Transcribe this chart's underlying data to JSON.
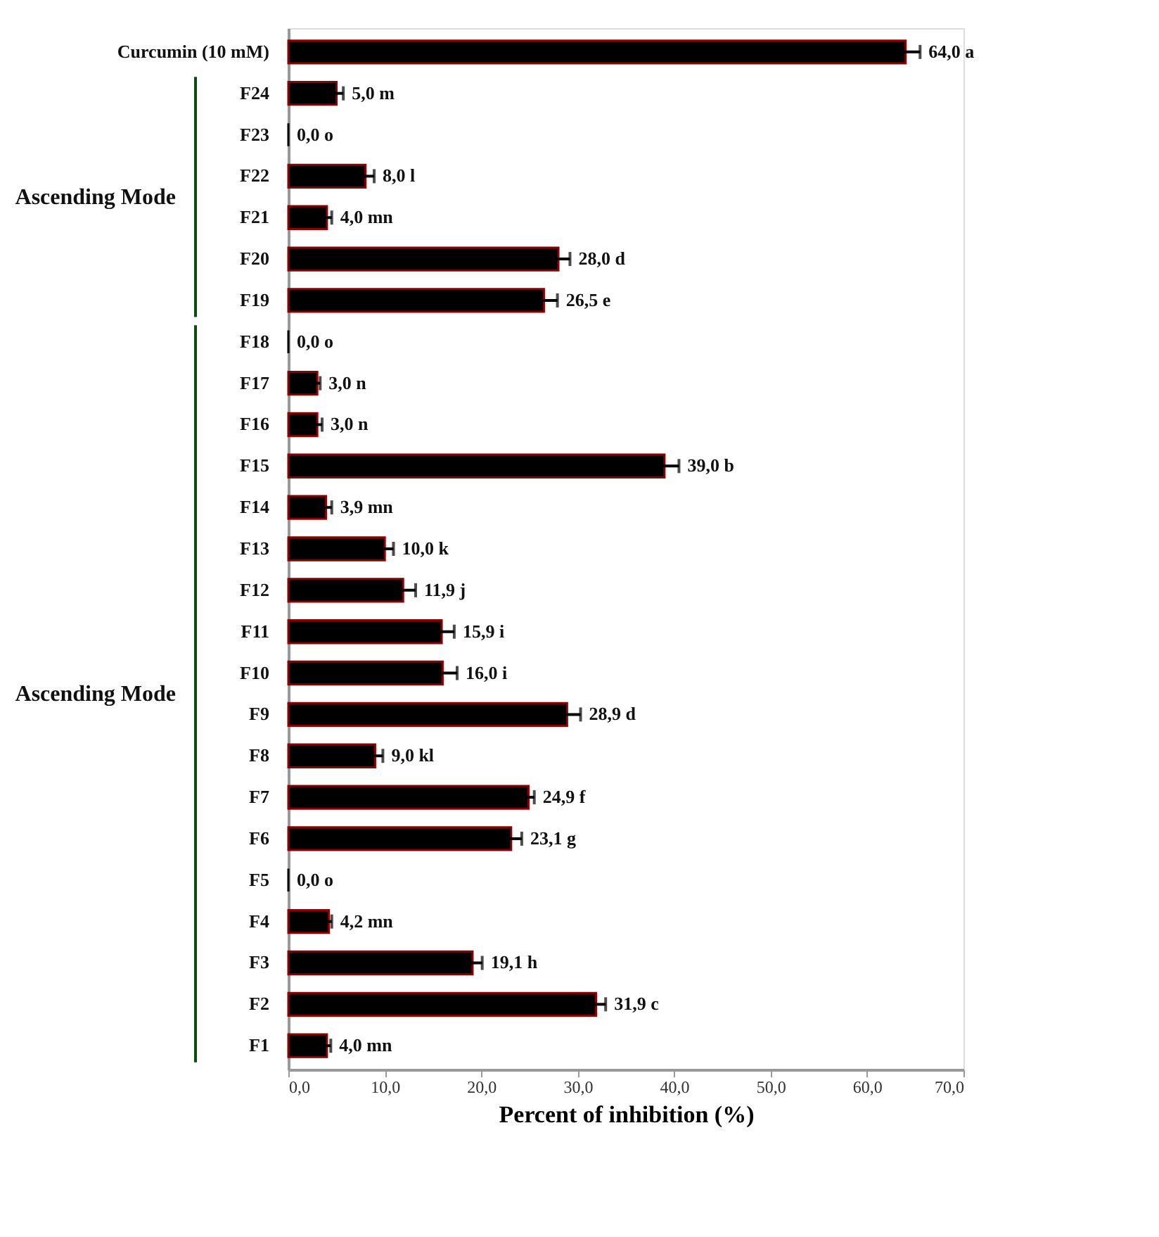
{
  "chart_data": {
    "type": "bar",
    "orientation": "horizontal",
    "xlabel": "Percent of inhibition (%)",
    "categories": [
      "Curcumin (10 mM)",
      "F24",
      "F23",
      "F22",
      "F21",
      "F20",
      "F19",
      "F18",
      "F17",
      "F16",
      "F15",
      "F14",
      "F13",
      "F12",
      "F11",
      "F10",
      "F9",
      "F8",
      "F7",
      "F6",
      "F5",
      "F4",
      "F3",
      "F2",
      "F1"
    ],
    "values": [
      64.0,
      5.0,
      0.0,
      8.0,
      4.0,
      28.0,
      26.5,
      0.0,
      3.0,
      3.0,
      39.0,
      3.9,
      10.0,
      11.9,
      15.9,
      16.0,
      28.9,
      9.0,
      24.9,
      23.1,
      0.0,
      4.2,
      19.1,
      31.9,
      4.0
    ],
    "errors": [
      1.5,
      0.7,
      null,
      0.9,
      0.5,
      1.2,
      1.4,
      null,
      0.3,
      0.5,
      1.5,
      0.6,
      0.9,
      1.3,
      1.3,
      1.5,
      1.4,
      0.8,
      0.6,
      1.1,
      null,
      0.3,
      1.0,
      1.0,
      0.4
    ],
    "value_labels": [
      "64,0 a",
      "5,0 m",
      "0,0 o",
      "8,0 l",
      "4,0 mn",
      "28,0 d",
      "26,5 e",
      "0,0 o",
      "3,0 n",
      "3,0 n",
      "39,0 b",
      "3,9 mn",
      "10,0 k",
      "11,9 j",
      "15,9 i",
      "16,0 i",
      "28,9 d",
      "9,0 kl",
      "24,9 f",
      "23,1 g",
      "0,0 o",
      "4,2 mn",
      "19,1 h",
      "31,9 c",
      "4,0 mn"
    ],
    "color": "#000000",
    "xlim": [
      0,
      70
    ],
    "xticks": [
      {
        "value": 0,
        "label": "0,0"
      },
      {
        "value": 10,
        "label": "10,0"
      },
      {
        "value": 20,
        "label": "20,0"
      },
      {
        "value": 30,
        "label": "30,0"
      },
      {
        "value": 40,
        "label": "40,0"
      },
      {
        "value": 50,
        "label": "50,0"
      },
      {
        "value": 60,
        "label": "60,0"
      },
      {
        "value": 70,
        "label": "70,0"
      }
    ],
    "annotations": [
      "Ascending Mode",
      "Ascending Mode"
    ],
    "grid": false
  }
}
